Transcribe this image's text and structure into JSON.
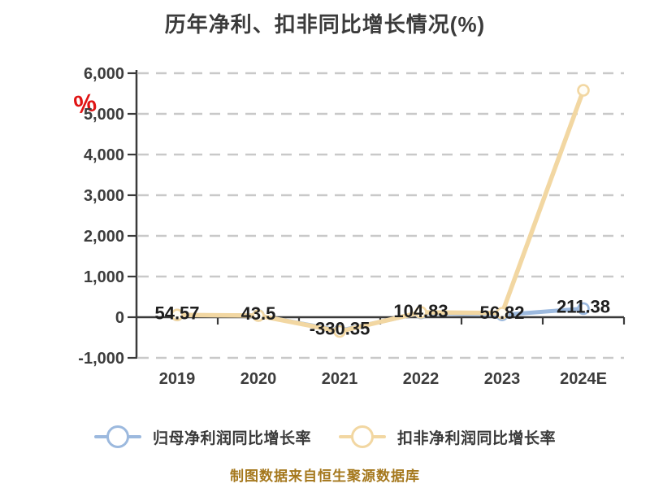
{
  "title": "历年净利、扣非同比增长情况(%)",
  "watermark": {
    "symbol": "%",
    "color": "#e01414"
  },
  "footer": {
    "text": "制图数据来自恒生聚源数据库",
    "color": "#a5781d"
  },
  "legend": [
    {
      "label": "归母净利润同比增长率",
      "color": "#9cb9de"
    },
    {
      "label": "扣非净利润同比增长率",
      "color": "#f2d7a2"
    }
  ],
  "chart_data": {
    "type": "line",
    "categories": [
      "2019",
      "2020",
      "2021",
      "2022",
      "2023",
      "2024E"
    ],
    "series": [
      {
        "name": "归母净利润同比增长率",
        "color": "#9cb9de",
        "marker_fill": "#ffffff",
        "values": [
          54.57,
          43.5,
          -330.35,
          104.83,
          56.82,
          211.38
        ]
      },
      {
        "name": "扣非净利润同比增长率",
        "color": "#f2d7a2",
        "marker_fill": "#fffdf6",
        "values": [
          55,
          40,
          -350,
          120,
          100,
          5580
        ]
      }
    ],
    "point_labels": [
      "54.57",
      "43.5",
      "-330.35",
      "104.83",
      "56.82",
      "211.38"
    ],
    "point_labels_series": "归母净利润同比增长率",
    "xlabel": "",
    "ylabel": "",
    "ylim": [
      -1000,
      6000
    ],
    "ytick_step": 1000,
    "ytick_labels": [
      "6,000",
      "5,000",
      "4,000",
      "3,000",
      "2,000",
      "1,000",
      "0",
      "-1,000"
    ],
    "grid": "dashed-horizontal",
    "grid_color": "#c9c9c9",
    "axis_color": "#3a3a3a",
    "legend_position": "bottom"
  }
}
